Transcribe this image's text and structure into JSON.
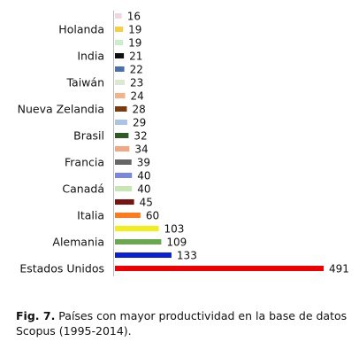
{
  "chart_data": {
    "type": "bar",
    "orientation": "horizontal",
    "categories": [
      "Estados Unidos",
      "",
      "Alemania",
      "",
      "Italia",
      "",
      "Canadá",
      "",
      "Francia",
      "",
      "Brasil",
      "",
      "Nueva Zelandia",
      "",
      "Taiwán",
      "",
      "India",
      "",
      "Holanda",
      ""
    ],
    "values": [
      491,
      133,
      109,
      103,
      60,
      45,
      40,
      40,
      39,
      34,
      32,
      29,
      28,
      24,
      23,
      22,
      21,
      19,
      19,
      16
    ],
    "colors": [
      "#ee0000",
      "#0a1fd8",
      "#6aa84f",
      "#f2ee1a",
      "#ff7a1a",
      "#7a1010",
      "#c8e6b4",
      "#7b86e0",
      "#666666",
      "#f4a582",
      "#2f5a25",
      "#a9c4e8",
      "#7a3a10",
      "#f7b28a",
      "#dde8d4",
      "#4a6fb0",
      "#111111",
      "#c8f0c8",
      "#f5d040",
      "#f2d4e4"
    ],
    "title": "",
    "xlabel": "",
    "ylabel": "",
    "xlim": [
      0,
      500
    ],
    "grid": false,
    "legend": "none",
    "data_labels": true
  },
  "caption": {
    "label": "Fig. 7.",
    "text": " Países con mayor productividad en la base de datos Scopus (1995-2014)."
  }
}
